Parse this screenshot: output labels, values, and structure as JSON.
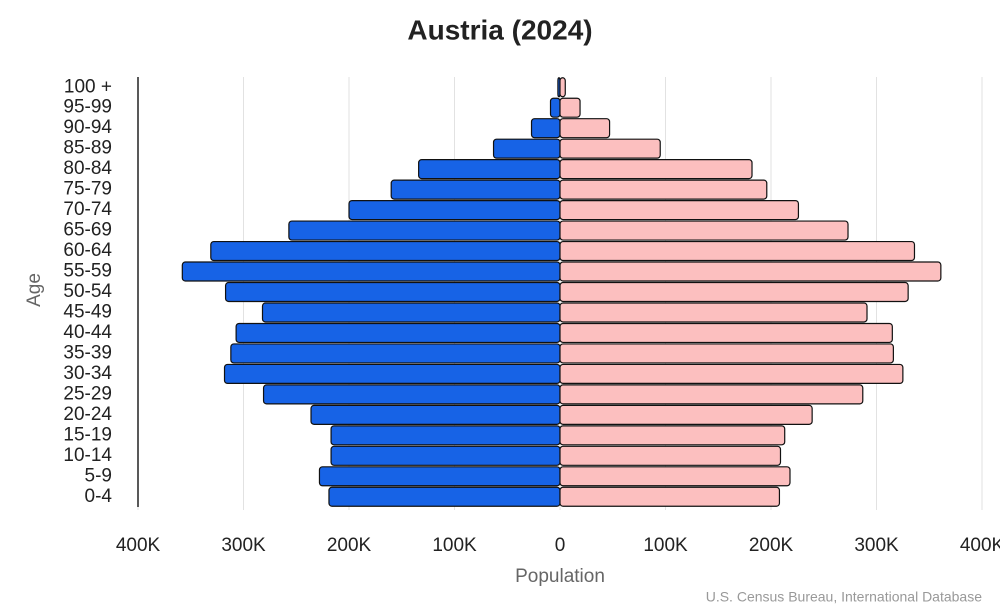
{
  "chart_data": {
    "type": "pyramid",
    "title": "Austria (2024)",
    "x_label": "Population",
    "y_label": "Age",
    "source": "U.S. Census Bureau, International Database",
    "categories": [
      "0-4",
      "5-9",
      "10-14",
      "15-19",
      "20-24",
      "25-29",
      "30-34",
      "35-39",
      "40-44",
      "45-49",
      "50-54",
      "55-59",
      "60-64",
      "65-69",
      "70-74",
      "75-79",
      "80-84",
      "85-89",
      "90-94",
      "95-99",
      "100 +"
    ],
    "series": [
      {
        "color": "#1763e6",
        "side": "left",
        "values": [
          219000,
          228000,
          217000,
          217000,
          236000,
          281000,
          318000,
          312000,
          307000,
          282000,
          317000,
          358000,
          331000,
          257000,
          200000,
          160000,
          134000,
          63000,
          27000,
          9000,
          2000
        ]
      },
      {
        "color": "#fcbfbf",
        "side": "right",
        "values": [
          208000,
          218000,
          209000,
          213000,
          239000,
          287000,
          325000,
          316000,
          315000,
          291000,
          330000,
          361000,
          336000,
          273000,
          226000,
          196000,
          182000,
          95000,
          47000,
          19000,
          5000
        ]
      }
    ],
    "xlim": [
      -400000,
      400000
    ],
    "xticks": [
      {
        "value": -400000,
        "label": "400K"
      },
      {
        "value": -300000,
        "label": "300K"
      },
      {
        "value": -200000,
        "label": "200K"
      },
      {
        "value": -100000,
        "label": "100K"
      },
      0,
      {
        "value": 100000,
        "label": "100K"
      },
      {
        "value": 200000,
        "label": "200K"
      },
      {
        "value": 300000,
        "label": "300K"
      },
      {
        "value": 400000,
        "label": "400K"
      }
    ],
    "grid": true
  }
}
